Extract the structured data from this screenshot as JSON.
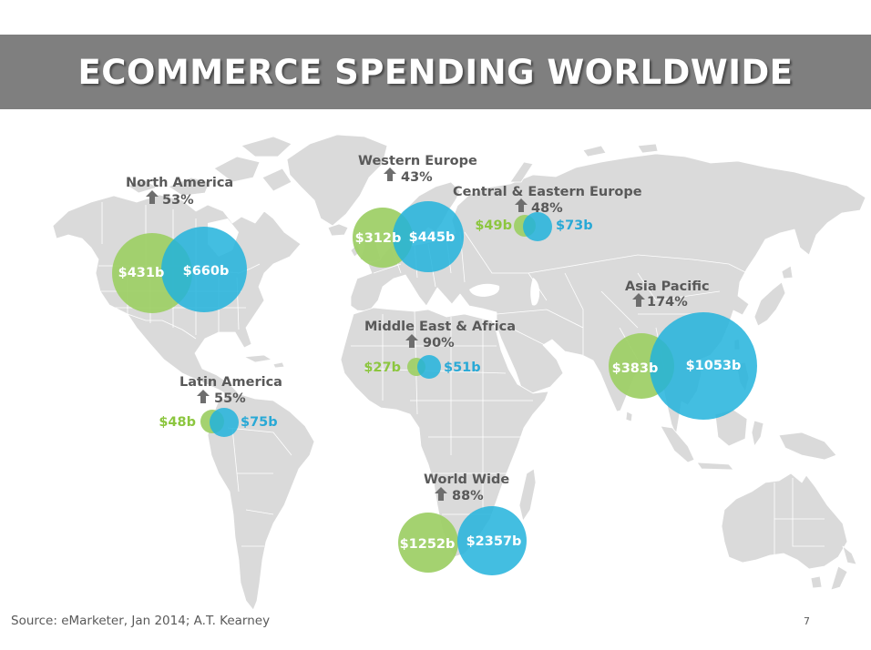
{
  "title": "ECOMMERCE SPENDING WORLDWIDE",
  "colors": {
    "banner": "#7f7f7f",
    "map_land": "#dadada",
    "bubble_green": "#9fd068",
    "bubble_blue": "#22b3dc",
    "label_text": "#595959",
    "green_text": "#8cc63f",
    "blue_text": "#29a9d6"
  },
  "growth_icon": "arrow-up-icon",
  "regions": {
    "north_america": {
      "name": "North America",
      "growth": "53%",
      "green_value": "$431b",
      "blue_value": "$660b"
    },
    "western_europe": {
      "name": "Western Europe",
      "growth": "43%",
      "green_value": "$312b",
      "blue_value": "$445b"
    },
    "central_eastern_europe": {
      "name": "Central & Eastern Europe",
      "growth": "48%",
      "green_value": "$49b",
      "blue_value": "$73b"
    },
    "asia_pacific": {
      "name": "Asia Pacific",
      "growth": "174%",
      "green_value": "$383b",
      "blue_value": "$1053b"
    },
    "middle_east_africa": {
      "name": "Middle East & Africa",
      "growth": "90%",
      "green_value": "$27b",
      "blue_value": "$51b"
    },
    "latin_america": {
      "name": "Latin America",
      "growth": "55%",
      "green_value": "$48b",
      "blue_value": "$75b"
    },
    "world_wide": {
      "name": "World Wide",
      "growth": "88%",
      "green_value": "$1252b",
      "blue_value": "$2357b"
    }
  },
  "source": "Source: eMarketer, Jan 2014; A.T. Kearney",
  "page_number": "7"
}
